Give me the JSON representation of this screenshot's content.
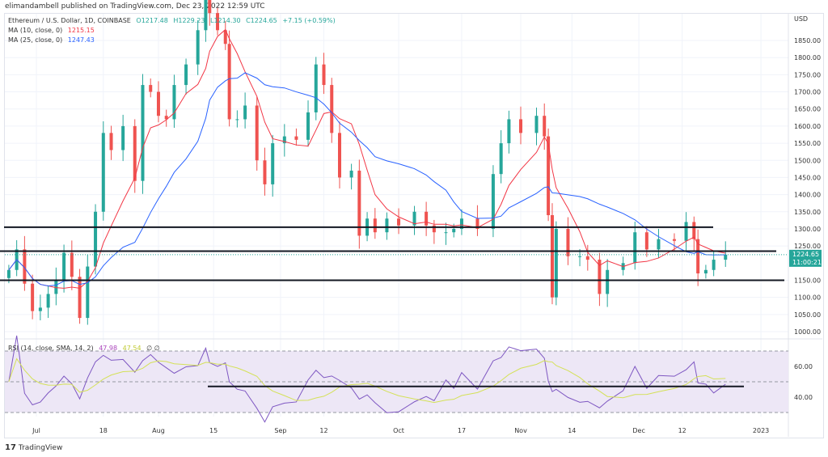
{
  "publisher": "elimandambell published on TradingView.com, Dec 23, 2022 12:59 UTC",
  "legend": {
    "symbol": "Ethereum / U.S. Dollar, 1D, COINBASE",
    "o": "O1217.48",
    "h": "H1229.23",
    "l": "L1214.30",
    "c": "C1224.65",
    "chg": "+7.15 (+0.59%)",
    "ma10_label": "MA (10, close, 0)",
    "ma10_value": "1215.15",
    "ma25_label": "MA (25, close, 0)",
    "ma25_value": "1247.43",
    "rsi_label": "RSI (14, close, SMA, 14, 2)",
    "rsi_value": "47.98",
    "rsi_sma_value": "47.54",
    "rsi_extra": "∅ ∅"
  },
  "brand": "TradingView",
  "colors": {
    "up": "#26a69a",
    "down": "#ef5350",
    "ma10": "#f23645",
    "ma25": "#2962ff",
    "rsi": "#7e57c2",
    "rsi_sma": "#d4e157",
    "rsi_band": "#ede7f6"
  },
  "chart_data": {
    "type": "candlestick",
    "currency": "USD",
    "last_price": "1224.65",
    "countdown": "11:00:21",
    "price_ticks": [
      "1850.00",
      "1800.00",
      "1750.00",
      "1700.00",
      "1650.00",
      "1600.00",
      "1550.00",
      "1500.00",
      "1450.00",
      "1400.00",
      "1350.00",
      "1300.00",
      "1250.00",
      "1150.00",
      "1100.00",
      "1050.00",
      "1000.00"
    ],
    "rsi_ticks": [
      "60.00",
      "40.00"
    ],
    "x_ticks": [
      [
        "2022-07-01",
        "Jul"
      ],
      [
        "2022-07-18",
        "18"
      ],
      [
        "2022-08-01",
        "Aug"
      ],
      [
        "2022-08-15",
        "15"
      ],
      [
        "2022-09-01",
        "Sep"
      ],
      [
        "2022-09-12",
        "12"
      ],
      [
        "2022-10-01",
        "Oct"
      ],
      [
        "2022-10-17",
        "17"
      ],
      [
        "2022-11-01",
        "Nov"
      ],
      [
        "2022-11-14",
        "14"
      ],
      [
        "2022-12-01",
        "Dec"
      ],
      [
        "2022-12-12",
        "12"
      ],
      [
        "2023-01-01",
        "2023"
      ]
    ],
    "horizontal_levels": [
      1305,
      1235,
      1150
    ],
    "rsi_level": 47,
    "closes": [
      [
        "2022-06-24",
        1180
      ],
      [
        "2022-06-26",
        1240
      ],
      [
        "2022-06-28",
        1140
      ],
      [
        "2022-06-30",
        1060
      ],
      [
        "2022-07-02",
        1070
      ],
      [
        "2022-07-04",
        1110
      ],
      [
        "2022-07-06",
        1150
      ],
      [
        "2022-07-08",
        1230
      ],
      [
        "2022-07-10",
        1160
      ],
      [
        "2022-07-12",
        1040
      ],
      [
        "2022-07-14",
        1190
      ],
      [
        "2022-07-16",
        1350
      ],
      [
        "2022-07-18",
        1580
      ],
      [
        "2022-07-20",
        1530
      ],
      [
        "2022-07-23",
        1600
      ],
      [
        "2022-07-26",
        1440
      ],
      [
        "2022-07-28",
        1720
      ],
      [
        "2022-07-30",
        1700
      ],
      [
        "2022-08-01",
        1630
      ],
      [
        "2022-08-03",
        1620
      ],
      [
        "2022-08-05",
        1720
      ],
      [
        "2022-08-08",
        1780
      ],
      [
        "2022-08-11",
        1880
      ],
      [
        "2022-08-13",
        1980
      ],
      [
        "2022-08-14",
        1930
      ],
      [
        "2022-08-16",
        1880
      ],
      [
        "2022-08-18",
        1840
      ],
      [
        "2022-08-19",
        1620
      ],
      [
        "2022-08-21",
        1620
      ],
      [
        "2022-08-23",
        1660
      ],
      [
        "2022-08-26",
        1500
      ],
      [
        "2022-08-28",
        1430
      ],
      [
        "2022-08-30",
        1550
      ],
      [
        "2022-09-02",
        1570
      ],
      [
        "2022-09-05",
        1560
      ],
      [
        "2022-09-08",
        1640
      ],
      [
        "2022-09-10",
        1780
      ],
      [
        "2022-09-12",
        1720
      ],
      [
        "2022-09-14",
        1580
      ],
      [
        "2022-09-16",
        1450
      ],
      [
        "2022-09-19",
        1470
      ],
      [
        "2022-09-21",
        1280
      ],
      [
        "2022-09-23",
        1330
      ],
      [
        "2022-09-25",
        1290
      ],
      [
        "2022-09-28",
        1330
      ],
      [
        "2022-10-01",
        1310
      ],
      [
        "2022-10-05",
        1350
      ],
      [
        "2022-10-08",
        1310
      ],
      [
        "2022-10-10",
        1290
      ],
      [
        "2022-10-13",
        1290
      ],
      [
        "2022-10-15",
        1300
      ],
      [
        "2022-10-17",
        1330
      ],
      [
        "2022-10-21",
        1300
      ],
      [
        "2022-10-25",
        1460
      ],
      [
        "2022-10-27",
        1550
      ],
      [
        "2022-10-29",
        1620
      ],
      [
        "2022-11-01",
        1580
      ],
      [
        "2022-11-05",
        1630
      ],
      [
        "2022-11-07",
        1570
      ],
      [
        "2022-11-08",
        1340
      ],
      [
        "2022-11-09",
        1100
      ],
      [
        "2022-11-10",
        1300
      ],
      [
        "2022-11-13",
        1220
      ],
      [
        "2022-11-16",
        1220
      ],
      [
        "2022-11-18",
        1210
      ],
      [
        "2022-11-21",
        1110
      ],
      [
        "2022-11-23",
        1180
      ],
      [
        "2022-11-27",
        1200
      ],
      [
        "2022-11-30",
        1290
      ],
      [
        "2022-12-03",
        1240
      ],
      [
        "2022-12-06",
        1270
      ],
      [
        "2022-12-10",
        1265
      ],
      [
        "2022-12-13",
        1320
      ],
      [
        "2022-12-15",
        1270
      ],
      [
        "2022-12-16",
        1170
      ],
      [
        "2022-12-18",
        1180
      ],
      [
        "2022-12-20",
        1210
      ],
      [
        "2022-12-23",
        1224.65
      ]
    ]
  }
}
